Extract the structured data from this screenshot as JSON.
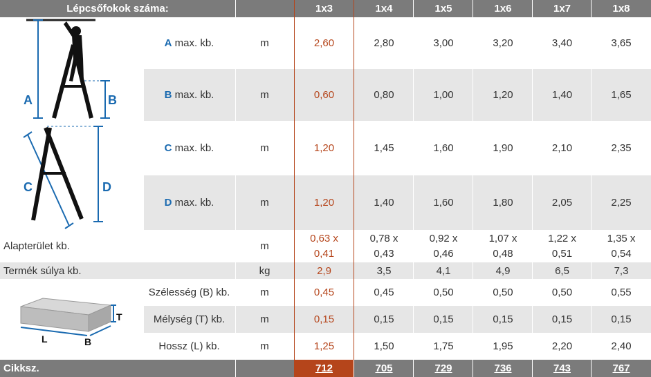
{
  "header": {
    "title": "Lépcsőfokok száma:",
    "columns": [
      "1x3",
      "1x4",
      "1x5",
      "1x6",
      "1x7",
      "1x8"
    ]
  },
  "ladder_rows": [
    {
      "letter": "A",
      "label": "max. kb.",
      "unit": "m",
      "values": [
        "2,60",
        "2,80",
        "3,00",
        "3,20",
        "3,40",
        "3,65"
      ]
    },
    {
      "letter": "B",
      "label": "max. kb.",
      "unit": "m",
      "values": [
        "0,60",
        "0,80",
        "1,00",
        "1,20",
        "1,40",
        "1,65"
      ]
    },
    {
      "letter": "C",
      "label": "max. kb.",
      "unit": "m",
      "values": [
        "1,20",
        "1,45",
        "1,60",
        "1,90",
        "2,10",
        "2,35"
      ]
    },
    {
      "letter": "D",
      "label": "max. kb.",
      "unit": "m",
      "values": [
        "1,20",
        "1,40",
        "1,60",
        "1,80",
        "2,05",
        "2,25"
      ]
    }
  ],
  "footprint": {
    "label": "Alapterület kb.",
    "unit": "m",
    "values": [
      [
        "0,63 x",
        "0,41"
      ],
      [
        "0,78 x",
        "0,43"
      ],
      [
        "0,92 x",
        "0,46"
      ],
      [
        "1,07 x",
        "0,48"
      ],
      [
        "1,22 x",
        "0,51"
      ],
      [
        "1,35 x",
        "0,54"
      ]
    ]
  },
  "weight": {
    "label": "Termék súlya kb.",
    "unit": "kg",
    "values": [
      "2,9",
      "3,5",
      "4,1",
      "4,9",
      "6,5",
      "7,3"
    ]
  },
  "package_rows": [
    {
      "label": "Szélesség (B) kb.",
      "unit": "m",
      "values": [
        "0,45",
        "0,45",
        "0,50",
        "0,50",
        "0,50",
        "0,55"
      ]
    },
    {
      "label": "Mélység (T) kb.",
      "unit": "m",
      "values": [
        "0,15",
        "0,15",
        "0,15",
        "0,15",
        "0,15",
        "0,15"
      ]
    },
    {
      "label": "Hossz (L) kb.",
      "unit": "m",
      "values": [
        "1,25",
        "1,50",
        "1,75",
        "1,95",
        "2,20",
        "2,40"
      ]
    }
  ],
  "article": {
    "label": "Cikksz.",
    "codes": [
      "712",
      "705",
      "729",
      "736",
      "743",
      "767"
    ]
  },
  "diagram_labels": {
    "a": "A",
    "b": "B",
    "c": "C",
    "d": "D",
    "t": "T",
    "l": "L",
    "box_b": "B"
  },
  "colors": {
    "header": "#7b7b7b",
    "highlight": "#b5451b",
    "letter": "#1a6ab0",
    "gray_row": "#e6e6e6"
  }
}
